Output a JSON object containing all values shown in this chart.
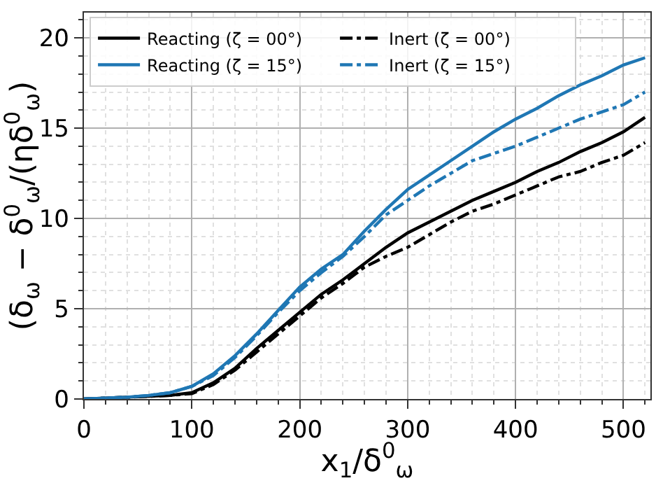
{
  "chart_data": {
    "type": "line",
    "xlabel": "x$_{1}$/δ$^{0}$$_{ω}$",
    "ylabel": "(δ$_{ω}$ − δ$^{0}$$_{ω}$/(ηδ$^{0}$$_{ω}$)",
    "x": [
      0,
      20,
      40,
      60,
      80,
      100,
      120,
      140,
      160,
      180,
      200,
      220,
      240,
      260,
      280,
      300,
      320,
      340,
      360,
      380,
      400,
      420,
      440,
      460,
      480,
      500,
      520
    ],
    "series": [
      {
        "name": "Reacting (ζ = 00°)",
        "color": "#000000",
        "line_style": "solid",
        "values": [
          0,
          0.05,
          0.1,
          0.15,
          0.2,
          0.35,
          0.9,
          1.7,
          2.8,
          3.8,
          4.8,
          5.8,
          6.6,
          7.5,
          8.4,
          9.2,
          9.8,
          10.4,
          11.0,
          11.5,
          12.0,
          12.6,
          13.1,
          13.7,
          14.2,
          14.8,
          15.6
        ]
      },
      {
        "name": "Inert (ζ = 00°)",
        "color": "#000000",
        "line_style": "dashdot",
        "values": [
          0,
          0.05,
          0.1,
          0.15,
          0.2,
          0.3,
          0.8,
          1.6,
          2.6,
          3.6,
          4.6,
          5.6,
          6.4,
          7.3,
          7.9,
          8.4,
          9.1,
          9.8,
          10.4,
          10.8,
          11.3,
          11.8,
          12.3,
          12.6,
          13.1,
          13.5,
          14.2
        ]
      },
      {
        "name": "Reacting (ζ = 15°)",
        "color": "#1f77b4",
        "line_style": "solid",
        "values": [
          0,
          0.05,
          0.1,
          0.2,
          0.35,
          0.7,
          1.4,
          2.4,
          3.6,
          4.9,
          6.2,
          7.2,
          8.0,
          9.3,
          10.5,
          11.6,
          12.4,
          13.2,
          14.0,
          14.8,
          15.5,
          16.1,
          16.8,
          17.4,
          17.9,
          18.5,
          18.9
        ]
      },
      {
        "name": "Inert (ζ = 15°)",
        "color": "#1f77b4",
        "line_style": "dashdot",
        "values": [
          0,
          0.05,
          0.1,
          0.2,
          0.35,
          0.7,
          1.3,
          2.3,
          3.5,
          4.8,
          6.0,
          7.0,
          7.9,
          9.0,
          10.2,
          11.0,
          11.8,
          12.5,
          13.2,
          13.6,
          14.0,
          14.5,
          15.0,
          15.5,
          15.9,
          16.3,
          17.0
        ]
      }
    ],
    "xlim": [
      0,
      525
    ],
    "xticks": [
      0,
      100,
      200,
      300,
      400,
      500
    ],
    "ylim": [
      0,
      21.4
    ],
    "yticks": [
      0,
      5,
      10,
      15,
      20
    ],
    "grid": true,
    "legend": "top"
  }
}
